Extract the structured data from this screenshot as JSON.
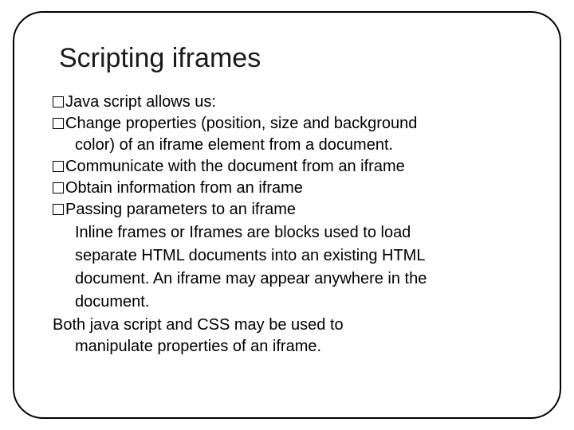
{
  "title": "Scripting iframes",
  "bullets": {
    "b1": "Java script allows us:",
    "b2": "Change properties (position, size and background",
    "b2_cont": "color) of an iframe element from a document.",
    "b3": "Communicate with the document from an iframe",
    "b4": "Obtain information from an iframe",
    "b5": "Passing parameters to an iframe"
  },
  "para": {
    "l1": "Inline frames or Iframes are blocks used to load",
    "l2": "separate HTML documents into an existing HTML",
    "l3": "document. An iframe may appear anywhere in the",
    "l4": "document."
  },
  "closing": {
    "l1": "Both java script and CSS may be used to",
    "l2": "manipulate properties of an iframe."
  },
  "style": {
    "title_fontsize": 34,
    "body_fontsize": 20,
    "text_color": "#000000",
    "title_color": "#1a1a1a",
    "border_color": "#000000",
    "border_radius": 38,
    "background": "#ffffff"
  }
}
